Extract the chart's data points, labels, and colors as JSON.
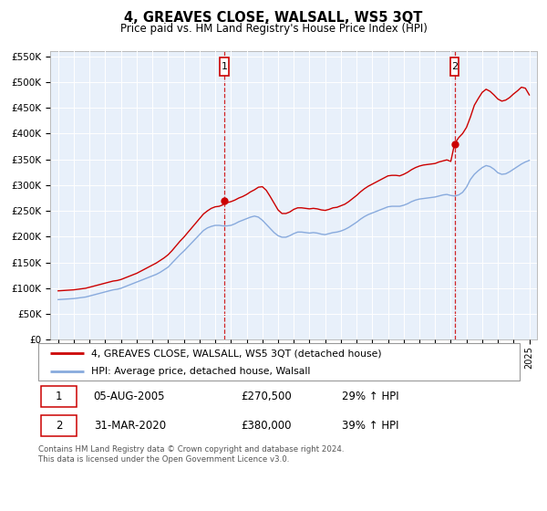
{
  "title": "4, GREAVES CLOSE, WALSALL, WS5 3QT",
  "subtitle": "Price paid vs. HM Land Registry's House Price Index (HPI)",
  "bg_color": "#e8f0fa",
  "ylim": [
    0,
    560000
  ],
  "yticks": [
    0,
    50000,
    100000,
    150000,
    200000,
    250000,
    300000,
    350000,
    400000,
    450000,
    500000,
    550000
  ],
  "ytick_labels": [
    "£0",
    "£50K",
    "£100K",
    "£150K",
    "£200K",
    "£250K",
    "£300K",
    "£350K",
    "£400K",
    "£450K",
    "£500K",
    "£550K"
  ],
  "xlim": [
    1994.5,
    2025.5
  ],
  "transaction1_date": 2005.58,
  "transaction1_price": 270500,
  "transaction1_label": "1",
  "transaction1_text": "05-AUG-2005",
  "transaction1_amount": "£270,500",
  "transaction1_hpi": "29% ↑ HPI",
  "transaction2_date": 2020.24,
  "transaction2_price": 380000,
  "transaction2_label": "2",
  "transaction2_text": "31-MAR-2020",
  "transaction2_amount": "£380,000",
  "transaction2_hpi": "39% ↑ HPI",
  "legend_label_red": "4, GREAVES CLOSE, WALSALL, WS5 3QT (detached house)",
  "legend_label_blue": "HPI: Average price, detached house, Walsall",
  "footer": "Contains HM Land Registry data © Crown copyright and database right 2024.\nThis data is licensed under the Open Government Licence v3.0.",
  "red_color": "#cc0000",
  "blue_color": "#88aadd",
  "hpi_years": [
    1995.0,
    1995.25,
    1995.5,
    1995.75,
    1996.0,
    1996.25,
    1996.5,
    1996.75,
    1997.0,
    1997.25,
    1997.5,
    1997.75,
    1998.0,
    1998.25,
    1998.5,
    1998.75,
    1999.0,
    1999.25,
    1999.5,
    1999.75,
    2000.0,
    2000.25,
    2000.5,
    2000.75,
    2001.0,
    2001.25,
    2001.5,
    2001.75,
    2002.0,
    2002.25,
    2002.5,
    2002.75,
    2003.0,
    2003.25,
    2003.5,
    2003.75,
    2004.0,
    2004.25,
    2004.5,
    2004.75,
    2005.0,
    2005.25,
    2005.5,
    2005.75,
    2006.0,
    2006.25,
    2006.5,
    2006.75,
    2007.0,
    2007.25,
    2007.5,
    2007.75,
    2008.0,
    2008.25,
    2008.5,
    2008.75,
    2009.0,
    2009.25,
    2009.5,
    2009.75,
    2010.0,
    2010.25,
    2010.5,
    2010.75,
    2011.0,
    2011.25,
    2011.5,
    2011.75,
    2012.0,
    2012.25,
    2012.5,
    2012.75,
    2013.0,
    2013.25,
    2013.5,
    2013.75,
    2014.0,
    2014.25,
    2014.5,
    2014.75,
    2015.0,
    2015.25,
    2015.5,
    2015.75,
    2016.0,
    2016.25,
    2016.5,
    2016.75,
    2017.0,
    2017.25,
    2017.5,
    2017.75,
    2018.0,
    2018.25,
    2018.5,
    2018.75,
    2019.0,
    2019.25,
    2019.5,
    2019.75,
    2020.0,
    2020.25,
    2020.5,
    2020.75,
    2021.0,
    2021.25,
    2021.5,
    2021.75,
    2022.0,
    2022.25,
    2022.5,
    2022.75,
    2023.0,
    2023.25,
    2023.5,
    2023.75,
    2024.0,
    2024.25,
    2024.5,
    2024.75,
    2025.0
  ],
  "hpi_values": [
    78000,
    78500,
    79000,
    79500,
    80000,
    81000,
    82000,
    83000,
    85000,
    87000,
    89000,
    91000,
    93000,
    95000,
    97000,
    98000,
    100000,
    103000,
    106000,
    109000,
    112000,
    115000,
    118000,
    121000,
    124000,
    127000,
    131000,
    136000,
    141000,
    149000,
    157000,
    165000,
    172000,
    180000,
    188000,
    196000,
    204000,
    212000,
    217000,
    220000,
    222000,
    222000,
    221000,
    221000,
    222000,
    225000,
    229000,
    232000,
    235000,
    238000,
    240000,
    238000,
    232000,
    224000,
    216000,
    208000,
    202000,
    199000,
    199000,
    202000,
    206000,
    209000,
    209000,
    208000,
    207000,
    208000,
    207000,
    205000,
    204000,
    206000,
    208000,
    209000,
    211000,
    214000,
    218000,
    223000,
    228000,
    234000,
    239000,
    243000,
    246000,
    249000,
    252000,
    255000,
    258000,
    259000,
    259000,
    259000,
    261000,
    264000,
    268000,
    271000,
    273000,
    274000,
    275000,
    276000,
    277000,
    279000,
    281000,
    282000,
    280000,
    279000,
    281000,
    286000,
    296000,
    311000,
    321000,
    328000,
    334000,
    338000,
    336000,
    331000,
    324000,
    321000,
    322000,
    326000,
    331000,
    336000,
    341000,
    345000,
    348000
  ],
  "price_years": [
    1995.0,
    1995.25,
    1995.5,
    1995.75,
    1996.0,
    1996.25,
    1996.5,
    1996.75,
    1997.0,
    1997.25,
    1997.5,
    1997.75,
    1998.0,
    1998.25,
    1998.5,
    1998.75,
    1999.0,
    1999.25,
    1999.5,
    1999.75,
    2000.0,
    2000.25,
    2000.5,
    2000.75,
    2001.0,
    2001.25,
    2001.5,
    2001.75,
    2002.0,
    2002.25,
    2002.5,
    2002.75,
    2003.0,
    2003.25,
    2003.5,
    2003.75,
    2004.0,
    2004.25,
    2004.5,
    2004.75,
    2005.0,
    2005.25,
    2005.5,
    2005.58,
    2005.75,
    2006.0,
    2006.25,
    2006.5,
    2006.75,
    2007.0,
    2007.25,
    2007.5,
    2007.75,
    2008.0,
    2008.25,
    2008.5,
    2008.75,
    2009.0,
    2009.25,
    2009.5,
    2009.75,
    2010.0,
    2010.25,
    2010.5,
    2010.75,
    2011.0,
    2011.25,
    2011.5,
    2011.75,
    2012.0,
    2012.25,
    2012.5,
    2012.75,
    2013.0,
    2013.25,
    2013.5,
    2013.75,
    2014.0,
    2014.25,
    2014.5,
    2014.75,
    2015.0,
    2015.25,
    2015.5,
    2015.75,
    2016.0,
    2016.25,
    2016.5,
    2016.75,
    2017.0,
    2017.25,
    2017.5,
    2017.75,
    2018.0,
    2018.25,
    2018.5,
    2018.75,
    2019.0,
    2019.25,
    2019.5,
    2019.75,
    2020.0,
    2020.24,
    2020.5,
    2020.75,
    2021.0,
    2021.25,
    2021.5,
    2021.75,
    2022.0,
    2022.25,
    2022.5,
    2022.75,
    2023.0,
    2023.25,
    2023.5,
    2023.75,
    2024.0,
    2024.25,
    2024.5,
    2024.75,
    2025.0
  ],
  "price_values": [
    95000,
    95500,
    96000,
    96500,
    97000,
    98000,
    99000,
    100000,
    102000,
    104000,
    106000,
    108000,
    110000,
    112000,
    114000,
    115000,
    117000,
    120000,
    123000,
    126000,
    129000,
    133000,
    137000,
    141000,
    145000,
    149000,
    154000,
    159000,
    165000,
    173000,
    182000,
    191000,
    199000,
    208000,
    217000,
    226000,
    235000,
    244000,
    250000,
    255000,
    258000,
    259000,
    262000,
    270500,
    266000,
    268000,
    271000,
    275000,
    278000,
    282000,
    287000,
    291000,
    296000,
    297000,
    290000,
    278000,
    265000,
    252000,
    245000,
    245000,
    248000,
    253000,
    256000,
    256000,
    255000,
    254000,
    255000,
    254000,
    252000,
    251000,
    253000,
    256000,
    257000,
    260000,
    263000,
    268000,
    274000,
    280000,
    287000,
    293000,
    298000,
    302000,
    306000,
    310000,
    314000,
    318000,
    319000,
    319000,
    318000,
    321000,
    325000,
    330000,
    334000,
    337000,
    339000,
    340000,
    341000,
    342000,
    345000,
    347000,
    349000,
    346000,
    380000,
    392000,
    400000,
    412000,
    432000,
    455000,
    468000,
    480000,
    486000,
    482000,
    475000,
    467000,
    463000,
    465000,
    470000,
    477000,
    483000,
    490000,
    488000,
    475000
  ]
}
